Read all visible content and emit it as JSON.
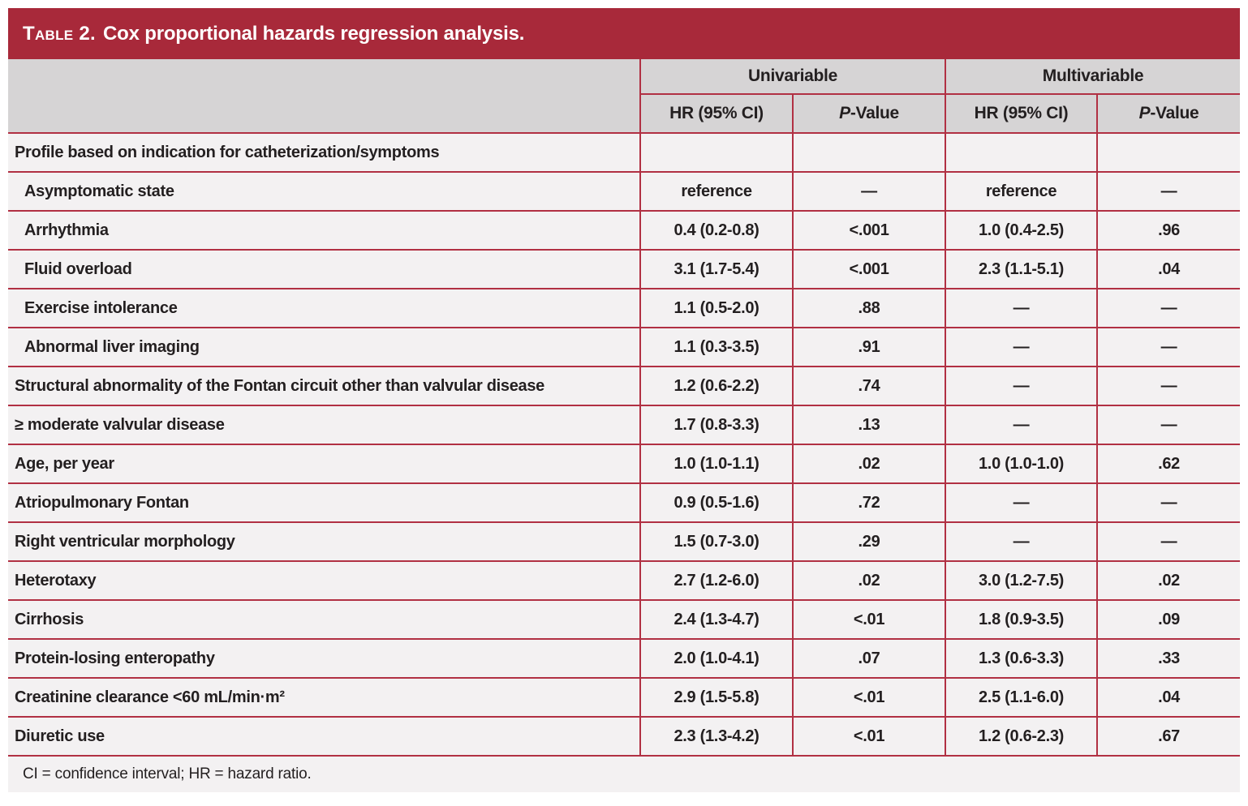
{
  "title": {
    "prefix": "Table 2.",
    "rest": "Cox proportional hazards regression analysis."
  },
  "colors": {
    "title_bar": "#a8293a",
    "grid_line": "#b13043",
    "header_bg": "#d6d4d5",
    "row_bg": "#f3f1f2",
    "text": "#231f20"
  },
  "table": {
    "column_groups": [
      {
        "label": "Univariable"
      },
      {
        "label": "Multivariable"
      }
    ],
    "sub_headers": {
      "hr_label": "HR (95% CI)",
      "p_italic": "P",
      "p_rest": "-Value"
    },
    "rows": [
      {
        "label": "Profile based on indication for catheterization/symptoms",
        "uni_hr": "",
        "uni_p": "",
        "multi_hr": "",
        "multi_p": ""
      },
      {
        "label": "Asymptomatic state",
        "uni_hr": "reference",
        "uni_p": "—",
        "multi_hr": "reference",
        "multi_p": "—"
      },
      {
        "label": "Arrhythmia",
        "uni_hr": "0.4 (0.2-0.8)",
        "uni_p": "<.001",
        "multi_hr": "1.0 (0.4-2.5)",
        "multi_p": ".96"
      },
      {
        "label": "Fluid overload",
        "uni_hr": "3.1 (1.7-5.4)",
        "uni_p": "<.001",
        "multi_hr": "2.3 (1.1-5.1)",
        "multi_p": ".04"
      },
      {
        "label": "Exercise intolerance",
        "uni_hr": "1.1 (0.5-2.0)",
        "uni_p": ".88",
        "multi_hr": "—",
        "multi_p": "—"
      },
      {
        "label": "Abnormal liver imaging",
        "uni_hr": "1.1 (0.3-3.5)",
        "uni_p": ".91",
        "multi_hr": "—",
        "multi_p": "—"
      },
      {
        "label": "Structural abnormality of the Fontan circuit other than valvular disease",
        "uni_hr": "1.2 (0.6-2.2)",
        "uni_p": ".74",
        "multi_hr": "—",
        "multi_p": "—"
      },
      {
        "label": "≥ moderate valvular disease",
        "uni_hr": "1.7 (0.8-3.3)",
        "uni_p": ".13",
        "multi_hr": "—",
        "multi_p": "—"
      },
      {
        "label": "Age, per year",
        "uni_hr": "1.0 (1.0-1.1)",
        "uni_p": ".02",
        "multi_hr": "1.0 (1.0-1.0)",
        "multi_p": ".62"
      },
      {
        "label": "Atriopulmonary Fontan",
        "uni_hr": "0.9 (0.5-1.6)",
        "uni_p": ".72",
        "multi_hr": "—",
        "multi_p": "—"
      },
      {
        "label": "Right ventricular morphology",
        "uni_hr": "1.5 (0.7-3.0)",
        "uni_p": ".29",
        "multi_hr": "—",
        "multi_p": "—"
      },
      {
        "label": "Heterotaxy",
        "uni_hr": "2.7 (1.2-6.0)",
        "uni_p": ".02",
        "multi_hr": "3.0 (1.2-7.5)",
        "multi_p": ".02"
      },
      {
        "label": "Cirrhosis",
        "uni_hr": "2.4 (1.3-4.7)",
        "uni_p": "<.01",
        "multi_hr": "1.8 (0.9-3.5)",
        "multi_p": ".09"
      },
      {
        "label": "Protein-losing enteropathy",
        "uni_hr": "2.0 (1.0-4.1)",
        "uni_p": ".07",
        "multi_hr": "1.3 (0.6-3.3)",
        "multi_p": ".33"
      },
      {
        "label": "Creatinine clearance <60 mL/min·m²",
        "uni_hr": "2.9 (1.5-5.8)",
        "uni_p": "<.01",
        "multi_hr": "2.5 (1.1-6.0)",
        "multi_p": ".04"
      },
      {
        "label": "Diuretic use",
        "uni_hr": "2.3 (1.3-4.2)",
        "uni_p": "<.01",
        "multi_hr": "1.2 (0.6-2.3)",
        "multi_p": ".67"
      }
    ]
  },
  "footnote": "CI = confidence interval; HR = hazard ratio."
}
